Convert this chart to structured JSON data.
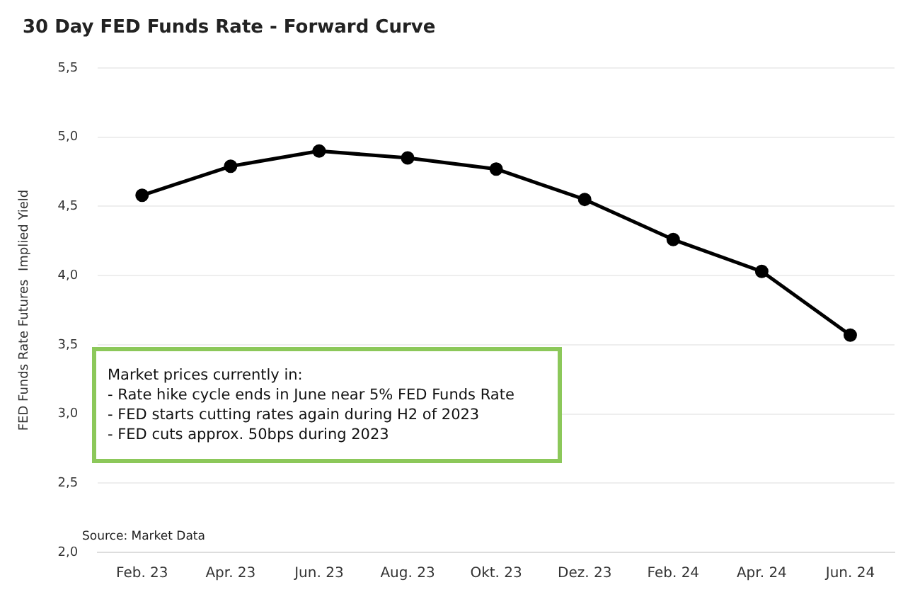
{
  "chart_data": {
    "type": "line",
    "title": "30 Day FED Funds Rate - Forward Curve",
    "ylabel": "FED Funds Rate Futures  Implied Yield",
    "categories": [
      "Feb. 23",
      "Apr. 23",
      "Jun. 23",
      "Aug. 23",
      "Okt. 23",
      "Dez. 23",
      "Feb. 24",
      "Apr. 24",
      "Jun. 24"
    ],
    "series": [
      {
        "color": "#000000",
        "values": [
          4.58,
          4.79,
          4.9,
          4.85,
          4.77,
          4.55,
          4.26,
          4.03,
          3.57
        ]
      }
    ],
    "ylim": [
      2.0,
      5.5
    ],
    "yticks": [
      {
        "value": 2.0,
        "label": "2,0"
      },
      {
        "value": 2.5,
        "label": "2,5"
      },
      {
        "value": 3.0,
        "label": "3,0"
      },
      {
        "value": 3.5,
        "label": "3,5"
      },
      {
        "value": 4.0,
        "label": "4,0"
      },
      {
        "value": 4.5,
        "label": "4,5"
      },
      {
        "value": 5.0,
        "label": "5,0"
      },
      {
        "value": 5.5,
        "label": "5,5"
      }
    ],
    "grid": "y",
    "legend": false,
    "marker": "circle",
    "line_style": "solid",
    "annotations": [
      "Market prices currently in:\n- Rate hike cycle ends in June near 5% FED Funds Rate\n- FED starts cutting rates again during H2 of 2023\n- FED cuts approx. 50bps during 2023",
      "Source: Market Data"
    ]
  }
}
